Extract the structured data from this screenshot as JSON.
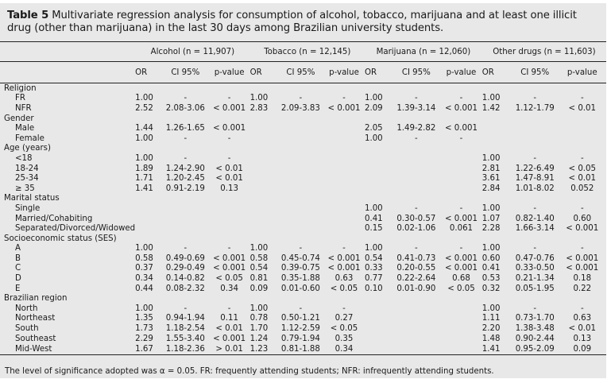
{
  "caption": {
    "label": "Table 5",
    "text": " Multivariate regression analysis for consumption of alcohol, tobacco, marijuana and at least one illicit drug (other than marijuana) in the last 30 days among Brazilian university students."
  },
  "groups": [
    {
      "label": "Alcohol (n = 11,907)"
    },
    {
      "label": "Tobacco (n = 12,145)"
    },
    {
      "label": "Marijuana (n = 12,060)"
    },
    {
      "label": "Other drugs (n = 11,603)"
    }
  ],
  "subcols": {
    "or": "OR",
    "ci": "CI 95%",
    "p": "p-value"
  },
  "sections": [
    {
      "title": "Religion",
      "rows": [
        {
          "label": "FR",
          "v": [
            "1.00",
            "-",
            "-",
            "1.00",
            "-",
            "-",
            "1.00",
            "-",
            "-",
            "1.00",
            "-",
            "-"
          ]
        },
        {
          "label": "NFR",
          "v": [
            "2.52",
            "2.08-3.06",
            "< 0.001",
            "2.83",
            "2.09-3.83",
            "< 0.001",
            "2.09",
            "1.39-3.14",
            "< 0.001",
            "1.42",
            "1.12-1.79",
            "< 0.01"
          ]
        }
      ]
    },
    {
      "title": "Gender",
      "rows": [
        {
          "label": "Male",
          "v": [
            "1.44",
            "1.26-1.65",
            "< 0.001",
            "",
            "",
            "",
            "2.05",
            "1.49-2.82",
            "< 0.001",
            "",
            "",
            ""
          ]
        },
        {
          "label": "Female",
          "v": [
            "1.00",
            "-",
            "-",
            "",
            "",
            "",
            "1.00",
            "-",
            "-",
            "",
            "",
            ""
          ]
        }
      ]
    },
    {
      "title": "Age (years)",
      "rows": [
        {
          "label": "<18",
          "v": [
            "1.00",
            "-",
            "-",
            "",
            "",
            "",
            "",
            "",
            "",
            "1.00",
            "-",
            "-"
          ]
        },
        {
          "label": "18-24",
          "v": [
            "1.89",
            "1.24-2.90",
            "< 0.01",
            "",
            "",
            "",
            "",
            "",
            "",
            "2.81",
            "1.22-6.49",
            "< 0.05"
          ]
        },
        {
          "label": "25-34",
          "v": [
            "1.71",
            "1.20-2.45",
            "< 0.01",
            "",
            "",
            "",
            "",
            "",
            "",
            "3.61",
            "1.47-8.91",
            "< 0.01"
          ]
        },
        {
          "label": "≥ 35",
          "v": [
            "1.41",
            "0.91-2.19",
            "0.13",
            "",
            "",
            "",
            "",
            "",
            "",
            "2.84",
            "1.01-8.02",
            "0.052"
          ]
        }
      ]
    },
    {
      "title": "Marital status",
      "rows": [
        {
          "label": "Single",
          "v": [
            "",
            "",
            "",
            "",
            "",
            "",
            "1.00",
            "-",
            "-",
            "1.00",
            "-",
            "-"
          ]
        },
        {
          "label": "Married/Cohabiting",
          "v": [
            "",
            "",
            "",
            "",
            "",
            "",
            "0.41",
            "0.30-0.57",
            "< 0.001",
            "1.07",
            "0.82-1.40",
            "0.60"
          ]
        },
        {
          "label": "Separated/Divorced/Widowed",
          "v": [
            "",
            "",
            "",
            "",
            "",
            "",
            "0.15",
            "0.02-1.06",
            "0.061",
            "2.28",
            "1.66-3.14",
            "< 0.001"
          ]
        }
      ]
    },
    {
      "title": "Socioeconomic status (SES)",
      "rows": [
        {
          "label": "A",
          "v": [
            "1.00",
            "-",
            "-",
            "1.00",
            "-",
            "-",
            "1.00",
            "-",
            "-",
            "1.00",
            "-",
            "-"
          ]
        },
        {
          "label": "B",
          "v": [
            "0.58",
            "0.49-0.69",
            "< 0.001",
            "0.58",
            "0.45-0.74",
            "< 0.001",
            "0.54",
            "0.41-0.73",
            "< 0.001",
            "0.60",
            "0.47-0.76",
            "< 0.001"
          ]
        },
        {
          "label": "C",
          "v": [
            "0.37",
            "0.29-0.49",
            "< 0.001",
            "0.54",
            "0.39-0.75",
            "< 0.001",
            "0.33",
            "0.20-0.55",
            "< 0.001",
            "0.41",
            "0.33-0.50",
            "< 0.001"
          ]
        },
        {
          "label": "D",
          "v": [
            "0.34",
            "0.14-0.82",
            "< 0.05",
            "0.81",
            "0.35-1.88",
            "0.63",
            "0.77",
            "0.22-2.64",
            "0.68",
            "0.53",
            "0.21-1.34",
            "0.18"
          ]
        },
        {
          "label": "E",
          "v": [
            "0.44",
            "0.08-2.32",
            "0.34",
            "0.09",
            "0.01-0.60",
            "< 0.05",
            "0.10",
            "0.01-0.90",
            "< 0.05",
            "0.32",
            "0.05-1.95",
            "0.22"
          ]
        }
      ]
    },
    {
      "title": "Brazilian region",
      "rows": [
        {
          "label": "North",
          "v": [
            "1.00",
            "-",
            "-",
            "1.00",
            "-",
            "-",
            "",
            "",
            "",
            "1.00",
            "-",
            "-"
          ]
        },
        {
          "label": "Northeast",
          "v": [
            "1.35",
            "0.94-1.94",
            "0.11",
            "0.78",
            "0.50-1.21",
            "0.27",
            "",
            "",
            "",
            "1.11",
            "0.73-1.70",
            "0.63"
          ]
        },
        {
          "label": "South",
          "v": [
            "1.73",
            "1.18-2.54",
            "< 0.01",
            "1.70",
            "1.12-2.59",
            "< 0.05",
            "",
            "",
            "",
            "2.20",
            "1.38-3.48",
            "< 0.01"
          ]
        },
        {
          "label": "Southeast",
          "v": [
            "2.29",
            "1.55-3.40",
            "< 0.001",
            "1.24",
            "0.79-1.94",
            "0.35",
            "",
            "",
            "",
            "1.48",
            "0.90-2.44",
            "0.13"
          ]
        },
        {
          "label": "Mid-West",
          "v": [
            "1.67",
            "1.18-2.36",
            "> 0.01",
            "1.23",
            "0.81-1.88",
            "0.34",
            "",
            "",
            "",
            "1.41",
            "0.95-2.09",
            "0.09"
          ]
        }
      ]
    }
  ],
  "footnote": "The level of significance adopted was α = 0.05. FR: frequently attending students; NFR: infrequently attending students."
}
